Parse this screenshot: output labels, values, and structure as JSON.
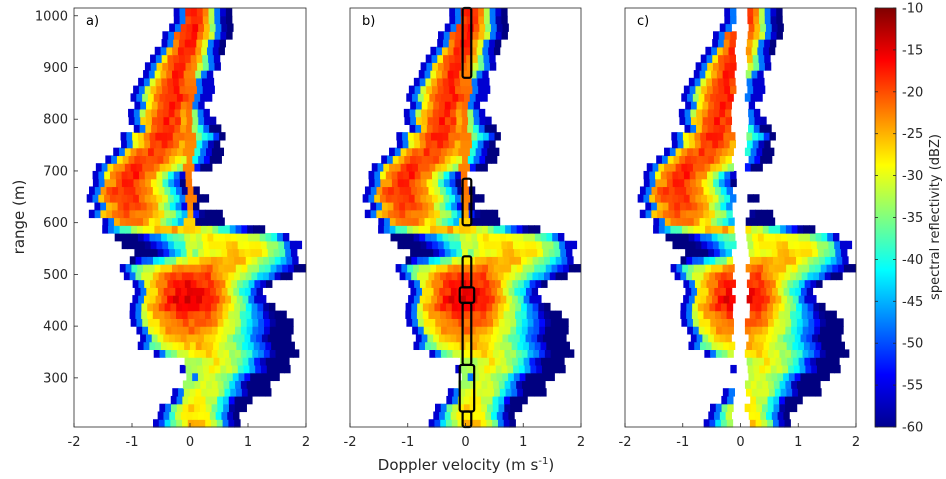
{
  "chart_data": [
    {
      "type": "heatmap",
      "panel_label": "a)",
      "xlabel": "Doppler velocity (m s",
      "xlabel_superscript": "-1",
      "xlabel_close": ")",
      "ylabel": "range (m)",
      "xlim": [
        -2,
        2
      ],
      "ylim": [
        205,
        1015
      ],
      "xticks": [
        "-2",
        "-1",
        "0",
        "1",
        "2"
      ],
      "yticks": [
        "300",
        "400",
        "500",
        "600",
        "700",
        "800",
        "900",
        "1000"
      ],
      "range_gate_spacing_m": 15,
      "spectrum_rows": [
        {
          "range": 210,
          "vmin": -0.6,
          "vmax": 0.75,
          "peak_v": 0.1,
          "peak_dbz": -24
        },
        {
          "range": 240,
          "vmin": -0.5,
          "vmax": 0.8,
          "peak_v": 0.05,
          "peak_dbz": -25
        },
        {
          "range": 270,
          "vmin": -0.35,
          "vmax": 1.3,
          "peak_v": 0.2,
          "peak_dbz": -27
        },
        {
          "range": 300,
          "vmin": -0.1,
          "vmax": 1.55,
          "peak_v": 0.3,
          "peak_dbz": -28
        },
        {
          "range": 330,
          "vmin": -0.1,
          "vmax": 1.7,
          "peak_v": 0.5,
          "peak_dbz": -27
        },
        {
          "range": 360,
          "vmin": -0.85,
          "vmax": 1.7,
          "peak_v": 0.1,
          "peak_dbz": -24
        },
        {
          "range": 390,
          "vmin": -0.95,
          "vmax": 1.75,
          "peak_v": 0.0,
          "peak_dbz": -20
        },
        {
          "range": 420,
          "vmin": -0.95,
          "vmax": 1.5,
          "peak_v": -0.05,
          "peak_dbz": -17
        },
        {
          "range": 450,
          "vmin": -1.0,
          "vmax": 1.25,
          "peak_v": 0.0,
          "peak_dbz": -12
        },
        {
          "range": 480,
          "vmin": -0.9,
          "vmax": 1.2,
          "peak_v": 0.0,
          "peak_dbz": -14
        },
        {
          "range": 510,
          "vmin": -1.15,
          "vmax": 1.85,
          "peak_v": 0.1,
          "peak_dbz": -19
        },
        {
          "range": 540,
          "vmin": -1.0,
          "vmax": 1.9,
          "peak_v": 0.8,
          "peak_dbz": -24
        },
        {
          "range": 570,
          "vmin": -1.2,
          "vmax": 1.7,
          "peak_v": 0.7,
          "peak_dbz": -26
        },
        {
          "range": 600,
          "vmin": -1.6,
          "vmax": 0.7,
          "peak_v": -1.0,
          "peak_dbz": -21
        },
        {
          "range": 630,
          "vmin": -1.7,
          "vmax": 0.2,
          "peak_v": -1.0,
          "peak_dbz": -17
        },
        {
          "range": 660,
          "vmin": -1.8,
          "vmax": 0.2,
          "peak_v": -1.1,
          "peak_dbz": -16
        },
        {
          "range": 690,
          "vmin": -1.7,
          "vmax": -0.1,
          "peak_v": -1.0,
          "peak_dbz": -16
        },
        {
          "range": 720,
          "vmin": -1.45,
          "vmax": 0.5,
          "peak_v": -0.75,
          "peak_dbz": -17
        },
        {
          "range": 750,
          "vmin": -1.3,
          "vmax": 0.55,
          "peak_v": -0.5,
          "peak_dbz": -17
        },
        {
          "range": 780,
          "vmin": -1.0,
          "vmax": 0.5,
          "peak_v": -0.4,
          "peak_dbz": -16
        },
        {
          "range": 810,
          "vmin": -1.05,
          "vmax": 0.3,
          "peak_v": -0.4,
          "peak_dbz": -16
        },
        {
          "range": 840,
          "vmin": -0.95,
          "vmax": 0.25,
          "peak_v": -0.3,
          "peak_dbz": -15
        },
        {
          "range": 870,
          "vmin": -0.85,
          "vmax": 0.25,
          "peak_v": -0.3,
          "peak_dbz": -16
        },
        {
          "range": 900,
          "vmin": -0.75,
          "vmax": 0.45,
          "peak_v": -0.2,
          "peak_dbz": -17
        },
        {
          "range": 930,
          "vmin": -0.6,
          "vmax": 0.5,
          "peak_v": -0.1,
          "peak_dbz": -16
        },
        {
          "range": 960,
          "vmin": -0.45,
          "vmax": 0.6,
          "peak_v": 0.0,
          "peak_dbz": -15
        },
        {
          "range": 990,
          "vmin": -0.3,
          "vmax": 0.7,
          "peak_v": 0.05,
          "peak_dbz": -15
        }
      ]
    },
    {
      "type": "heatmap",
      "panel_label": "b)",
      "xlim": [
        -2,
        2
      ],
      "ylim": [
        205,
        1015
      ],
      "xticks": [
        "-2",
        "-1",
        "0",
        "1",
        "2"
      ],
      "same_spectra_as": "a)",
      "outlined_regions": [
        {
          "range_from": 880,
          "range_to": 1015,
          "v_from": -0.05,
          "v_to": 0.1
        },
        {
          "range_from": 595,
          "range_to": 685,
          "v_from": -0.05,
          "v_to": 0.1
        },
        {
          "range_from": 475,
          "range_to": 535,
          "v_from": -0.05,
          "v_to": 0.1
        },
        {
          "range_from": 445,
          "range_to": 475,
          "v_from": -0.1,
          "v_to": 0.15
        },
        {
          "range_from": 325,
          "range_to": 445,
          "v_from": -0.05,
          "v_to": 0.1
        },
        {
          "range_from": 235,
          "range_to": 325,
          "v_from": -0.1,
          "v_to": 0.15
        },
        {
          "range_from": 205,
          "range_to": 235,
          "v_from": -0.05,
          "v_to": 0.1
        }
      ]
    },
    {
      "type": "heatmap",
      "panel_label": "c)",
      "xlim": [
        -2,
        2
      ],
      "ylim": [
        205,
        1015
      ],
      "xticks": [
        "-2",
        "-1",
        "0",
        "1",
        "2"
      ],
      "same_spectra_as": "a)",
      "note": "near-zero-velocity clutter removed"
    },
    {
      "type": "colorbar",
      "label": "spectral reflectivity (dBZ)",
      "clim": [
        -60,
        -10
      ],
      "ticks": [
        "-10",
        "-15",
        "-20",
        "-25",
        "-30",
        "-35",
        "-40",
        "-45",
        "-50",
        "-55",
        "-60"
      ],
      "colormap": "jet"
    }
  ]
}
